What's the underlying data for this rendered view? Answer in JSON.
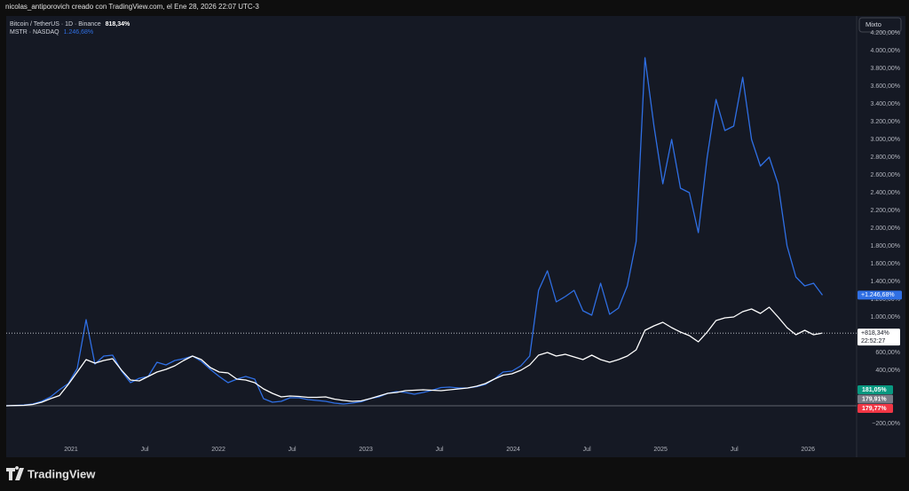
{
  "header": "nicolas_antiporovich creado con TradingView.com, el Ene 28, 2026 22:07 UTC-3",
  "brand": "TradingView",
  "mode_button": "Mixto",
  "chart_data": {
    "type": "line",
    "x": [
      2020.56,
      2020.62,
      2020.68,
      2020.741,
      2020.801,
      2020.861,
      2020.921,
      2020.981,
      2021.042,
      2021.102,
      2021.162,
      2021.222,
      2021.282,
      2021.343,
      2021.403,
      2021.463,
      2021.523,
      2021.583,
      2021.644,
      2021.704,
      2021.764,
      2021.824,
      2021.884,
      2021.945,
      2022.005,
      2022.065,
      2022.125,
      2022.185,
      2022.246,
      2022.306,
      2022.366,
      2022.426,
      2022.486,
      2022.547,
      2022.607,
      2022.667,
      2022.727,
      2022.787,
      2022.848,
      2022.908,
      2022.968,
      2023.028,
      2023.088,
      2023.149,
      2023.209,
      2023.269,
      2023.329,
      2023.389,
      2023.45,
      2023.51,
      2023.57,
      2023.63,
      2023.69,
      2023.751,
      2023.811,
      2023.871,
      2023.931,
      2023.991,
      2024.052,
      2024.112,
      2024.172,
      2024.232,
      2024.292,
      2024.353,
      2024.413,
      2024.473,
      2024.533,
      2024.593,
      2024.654,
      2024.714,
      2024.774,
      2024.834,
      2024.894,
      2024.955,
      2025.015,
      2025.075,
      2025.135,
      2025.195,
      2025.256,
      2025.316,
      2025.376,
      2025.436,
      2025.496,
      2025.557,
      2025.617,
      2025.677,
      2025.737,
      2025.797,
      2025.858,
      2025.918,
      2025.978,
      2026.038,
      2026.098
    ],
    "series": [
      {
        "name": "Bitcoin / TetherUS · 1D · Binance",
        "color": "#ffffff",
        "legend_value": "818,34%",
        "last_label": "+818,34%",
        "countdown": "22:52:27",
        "values": [
          0,
          3,
          5,
          15,
          40,
          80,
          115,
          240,
          380,
          520,
          480,
          510,
          530,
          400,
          290,
          280,
          330,
          380,
          410,
          450,
          510,
          560,
          520,
          430,
          380,
          370,
          300,
          290,
          260,
          190,
          140,
          100,
          110,
          105,
          95,
          95,
          100,
          75,
          60,
          50,
          55,
          80,
          110,
          140,
          150,
          170,
          175,
          180,
          175,
          170,
          180,
          190,
          200,
          220,
          250,
          300,
          345,
          360,
          400,
          460,
          570,
          600,
          560,
          580,
          550,
          520,
          570,
          520,
          490,
          520,
          560,
          630,
          850,
          900,
          940,
          880,
          830,
          790,
          720,
          830,
          960,
          990,
          1000,
          1060,
          1090,
          1040,
          1110,
          1000,
          880,
          800,
          850,
          800,
          818.34
        ]
      },
      {
        "name": "MSTR · NASDAQ",
        "color": "#2f6fe4",
        "legend_value": "1.246,68%",
        "last_label": "+1.246,68%",
        "values": [
          0,
          3,
          8,
          20,
          50,
          100,
          180,
          250,
          420,
          970,
          470,
          560,
          570,
          390,
          260,
          310,
          330,
          490,
          460,
          510,
          530,
          560,
          500,
          410,
          330,
          260,
          300,
          330,
          300,
          80,
          40,
          50,
          90,
          90,
          70,
          60,
          50,
          30,
          20,
          30,
          45,
          80,
          100,
          140,
          160,
          150,
          130,
          150,
          175,
          205,
          210,
          200,
          200,
          215,
          240,
          300,
          380,
          390,
          450,
          560,
          1300,
          1520,
          1170,
          1230,
          1300,
          1070,
          1020,
          1380,
          1030,
          1100,
          1350,
          1850,
          3920,
          3150,
          2500,
          3000,
          2450,
          2400,
          1950,
          2800,
          3450,
          3100,
          3150,
          3700,
          3000,
          2700,
          2800,
          2500,
          1800,
          1450,
          1350,
          1380,
          1246.68
        ]
      }
    ],
    "xlim": [
      2020.56,
      2026.33
    ],
    "xticks": [
      {
        "value": 2021,
        "label": "2021"
      },
      {
        "value": 2021.5,
        "label": "Jul"
      },
      {
        "value": 2022,
        "label": "2022"
      },
      {
        "value": 2022.5,
        "label": "Jul"
      },
      {
        "value": 2023,
        "label": "2023"
      },
      {
        "value": 2023.5,
        "label": "Jul"
      },
      {
        "value": 2024,
        "label": "2024"
      },
      {
        "value": 2024.5,
        "label": "Jul"
      },
      {
        "value": 2025,
        "label": "2025"
      },
      {
        "value": 2025.5,
        "label": "Jul"
      },
      {
        "value": 2026,
        "label": "2026"
      }
    ],
    "ylim": [
      -400,
      4390
    ],
    "yticks": [
      {
        "value": 4200,
        "label": "4.200,00%"
      },
      {
        "value": 4000,
        "label": "4.000,00%"
      },
      {
        "value": 3800,
        "label": "3.800,00%"
      },
      {
        "value": 3600,
        "label": "3.600,00%"
      },
      {
        "value": 3400,
        "label": "3.400,00%"
      },
      {
        "value": 3200,
        "label": "3.200,00%"
      },
      {
        "value": 3000,
        "label": "3.000,00%"
      },
      {
        "value": 2800,
        "label": "2.800,00%"
      },
      {
        "value": 2600,
        "label": "2.600,00%"
      },
      {
        "value": 2400,
        "label": "2.400,00%"
      },
      {
        "value": 2200,
        "label": "2.200,00%"
      },
      {
        "value": 2000,
        "label": "2.000,00%"
      },
      {
        "value": 1800,
        "label": "1.800,00%"
      },
      {
        "value": 1600,
        "label": "1.600,00%"
      },
      {
        "value": 1400,
        "label": "1.400,00%"
      },
      {
        "value": 1200,
        "label": "1.200,00%"
      },
      {
        "value": 1000,
        "label": "1.000,00%"
      },
      {
        "value": 600,
        "label": "600,00%"
      },
      {
        "value": 400,
        "label": "400,00%"
      },
      {
        "value": -200,
        "label": "−200,00%"
      }
    ],
    "grid": false,
    "price_tags": [
      {
        "label": "181,05%",
        "color": "#089981"
      },
      {
        "label": "179,91%",
        "color": "#787b86"
      },
      {
        "label": "179,77%",
        "color": "#f23645"
      }
    ]
  }
}
